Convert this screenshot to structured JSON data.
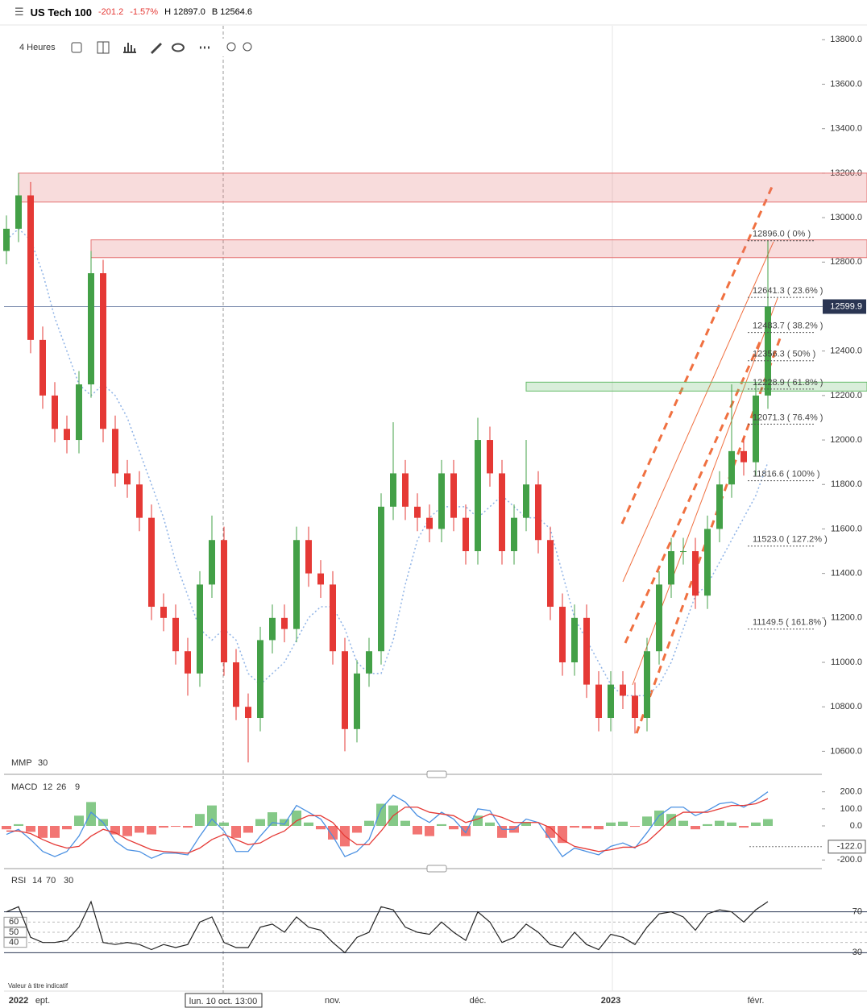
{
  "header": {
    "instrument": "US Tech 100",
    "change": -201.2,
    "change_pct": "-1.57%",
    "high": "H 12897.0",
    "low": "B 12564.6"
  },
  "toolbar": {
    "timeframe": "4 Heures"
  },
  "footer": {
    "note": "Valeur à titre indicatif",
    "crosshair_label": "lun. 10 oct. 13:00"
  },
  "chart_data": [
    {
      "type": "candlestick",
      "categories": [
        null,
        "2022",
        null,
        "ept.",
        null,
        null,
        null,
        null,
        null,
        null,
        null,
        null,
        null,
        null,
        null,
        null,
        null,
        null,
        null,
        null,
        null,
        null,
        null,
        null,
        null,
        null,
        null,
        "nov.",
        null,
        null,
        null,
        null,
        null,
        null,
        null,
        null,
        null,
        null,
        null,
        "déc.",
        null,
        null,
        null,
        null,
        null,
        null,
        null,
        null,
        null,
        null,
        "2023",
        null,
        null,
        null,
        null,
        null,
        null,
        null,
        null,
        null,
        null,
        null,
        "févr.",
        null
      ],
      "open": [
        12850,
        12950,
        13100,
        12450,
        12200,
        12050,
        12000,
        12250,
        12750,
        12050,
        11850,
        11800,
        11650,
        11250,
        11200,
        11050,
        10950,
        11350,
        11550,
        11000,
        10800,
        10750,
        11100,
        11200,
        11150,
        11550,
        11400,
        11350,
        11050,
        10700,
        10950,
        11050,
        11700,
        11850,
        11700,
        11650,
        11600,
        11850,
        11650,
        11500,
        12000,
        11850,
        11500,
        11650,
        11800,
        11550,
        11250,
        11000,
        11200,
        10900,
        10750,
        10900,
        10850,
        10750,
        11050,
        11350,
        11500,
        11500,
        11300,
        11600,
        11800,
        11950,
        11900,
        12200
      ],
      "high": [
        13010,
        13200,
        13160,
        12510,
        12260,
        12110,
        12310,
        12850,
        12810,
        12110,
        11910,
        11860,
        11710,
        11310,
        11260,
        11110,
        11410,
        11660,
        11610,
        11060,
        10860,
        11160,
        11260,
        11260,
        11610,
        11610,
        11460,
        11410,
        11110,
        11010,
        11110,
        11760,
        12080,
        11910,
        11760,
        11710,
        11910,
        11910,
        11710,
        12100,
        12060,
        11910,
        11710,
        12000,
        11860,
        11610,
        11310,
        11260,
        11260,
        10960,
        10960,
        10960,
        10910,
        11110,
        11410,
        11560,
        11560,
        11560,
        11660,
        11860,
        12250,
        12010,
        12260,
        12896
      ],
      "low": [
        12790,
        12890,
        12390,
        12140,
        11990,
        11940,
        11940,
        12190,
        11990,
        11790,
        11740,
        11590,
        11190,
        11140,
        10990,
        10850,
        10890,
        11290,
        10940,
        10740,
        10550,
        10690,
        11040,
        11090,
        11090,
        11340,
        11290,
        10990,
        10600,
        10640,
        10890,
        10990,
        11640,
        11640,
        11590,
        11540,
        11540,
        11590,
        11440,
        11440,
        11790,
        11440,
        11440,
        11590,
        11490,
        11190,
        10940,
        10940,
        10840,
        10690,
        10690,
        10790,
        10680,
        10690,
        10990,
        11290,
        11440,
        11240,
        11240,
        11540,
        11740,
        11840,
        11840,
        12140
      ],
      "close": [
        12950,
        13100,
        12450,
        12200,
        12050,
        12000,
        12250,
        12750,
        12050,
        11850,
        11800,
        11650,
        11250,
        11200,
        11050,
        10950,
        11350,
        11550,
        11000,
        10800,
        10750,
        11100,
        11200,
        11150,
        11550,
        11400,
        11350,
        11050,
        10700,
        10950,
        11050,
        11700,
        11850,
        11700,
        11650,
        11600,
        11850,
        11650,
        11500,
        12000,
        11850,
        11500,
        11650,
        11800,
        11550,
        11250,
        11000,
        11200,
        10900,
        10750,
        10900,
        10850,
        10750,
        11050,
        11350,
        11500,
        11500,
        11300,
        11600,
        11800,
        11950,
        11900,
        12200,
        12600
      ],
      "up_color": "#43a047",
      "down_color": "#e53935",
      "ma": {
        "name": "MMP",
        "period": 30,
        "color": "#8fb3e6",
        "values": [
          12900,
          12950,
          12900,
          12750,
          12550,
          12400,
          12250,
          12200,
          12250,
          12200,
          12100,
          11950,
          11800,
          11650,
          11450,
          11300,
          11150,
          11100,
          11150,
          11100,
          10950,
          10900,
          10950,
          11000,
          11100,
          11200,
          11250,
          11250,
          11150,
          11000,
          10950,
          10950,
          11100,
          11350,
          11550,
          11650,
          11700,
          11700,
          11700,
          11650,
          11700,
          11750,
          11700,
          11650,
          11650,
          11600,
          11400,
          11200,
          11100,
          11000,
          10900,
          10850,
          10850,
          10850,
          10900,
          11000,
          11150,
          11300,
          11350,
          11450,
          11550,
          11650,
          11750,
          11900
        ]
      },
      "zones": [
        {
          "from": 13070,
          "to": 13200,
          "start": 1,
          "color": "#e57373"
        },
        {
          "from": 12820,
          "to": 12900,
          "start": 7,
          "color": "#e57373"
        },
        {
          "from": 12220,
          "to": 12260,
          "start": 43,
          "color": "#66bb6a"
        }
      ],
      "fib": [
        {
          "value": 12896,
          "label": "12896.0 ( 0% )"
        },
        {
          "value": 12641.3,
          "label": "12641.3 ( 23.6% )"
        },
        {
          "value": 12483.7,
          "label": "12483.7 ( 38.2% )"
        },
        {
          "value": 12356.3,
          "label": "12356.3 ( 50% )"
        },
        {
          "value": 12228.9,
          "label": "12228.9 ( 61.8% )"
        },
        {
          "value": 12071.3,
          "label": "12071.3 ( 76.4% )"
        },
        {
          "value": 11816.6,
          "label": "11816.6 ( 100% )"
        },
        {
          "value": 11523,
          "label": "11523.0 ( 127.2% )"
        },
        {
          "value": 11149.5,
          "label": "11149.5 ( 161.8% )"
        }
      ],
      "last_price": 12599.9,
      "ylim": [
        10500,
        13870
      ],
      "yticks": [
        {
          "value": 10600,
          "label": "10600.0"
        },
        {
          "value": 10800,
          "label": "10800.0"
        },
        {
          "value": 11000,
          "label": "11000.0"
        },
        {
          "value": 11200,
          "label": "11200.0"
        },
        {
          "value": 11400,
          "label": "11400.0"
        },
        {
          "value": 11600,
          "label": "11600.0"
        },
        {
          "value": 11800,
          "label": "11800.0"
        },
        {
          "value": 12000,
          "label": "12000.0"
        },
        {
          "value": 12200,
          "label": "12200.0"
        },
        {
          "value": 12400,
          "label": "12400.0"
        },
        {
          "value": 12600,
          "label": "12600.0"
        },
        {
          "value": 12800,
          "label": "12800.0"
        },
        {
          "value": 13000,
          "label": "13000.0"
        },
        {
          "value": 13200,
          "label": "13200.0"
        },
        {
          "value": 13400,
          "label": "13400.0"
        },
        {
          "value": 13600,
          "label": "13600.0"
        },
        {
          "value": 13800,
          "label": "13800.0"
        }
      ]
    },
    {
      "type": "macd",
      "name": "MACD",
      "params": [
        12,
        26,
        9
      ],
      "series": [
        {
          "name": "MACD",
          "color": "#4a90e2",
          "values": [
            -50,
            -20,
            -80,
            -150,
            -180,
            -150,
            -60,
            80,
            20,
            -90,
            -140,
            -150,
            -190,
            -160,
            -160,
            -170,
            -60,
            40,
            -30,
            -150,
            -150,
            -60,
            20,
            10,
            120,
            80,
            40,
            -60,
            -180,
            -150,
            -80,
            100,
            180,
            140,
            60,
            20,
            80,
            40,
            -40,
            100,
            90,
            -20,
            -20,
            40,
            20,
            -80,
            -180,
            -130,
            -150,
            -170,
            -120,
            -100,
            -130,
            -40,
            60,
            110,
            110,
            60,
            90,
            130,
            140,
            110,
            150,
            200
          ]
        },
        {
          "name": "Signal",
          "color": "#e53935",
          "values": [
            -30,
            -30,
            -45,
            -80,
            -110,
            -130,
            -120,
            -60,
            -20,
            -40,
            -80,
            -110,
            -140,
            -150,
            -155,
            -160,
            -130,
            -80,
            -50,
            -80,
            -110,
            -100,
            -60,
            -30,
            30,
            60,
            60,
            20,
            -60,
            -110,
            -110,
            -30,
            60,
            110,
            110,
            80,
            70,
            60,
            20,
            40,
            70,
            50,
            20,
            20,
            20,
            -10,
            -80,
            -120,
            -135,
            -150,
            -140,
            -125,
            -125,
            -95,
            -30,
            40,
            80,
            80,
            80,
            100,
            120,
            120,
            130,
            160
          ]
        }
      ],
      "histogram": [
        -20,
        10,
        -35,
        -70,
        -70,
        -20,
        60,
        140,
        40,
        -50,
        -60,
        -40,
        -50,
        -10,
        -5,
        -10,
        70,
        120,
        20,
        -70,
        -40,
        40,
        80,
        40,
        90,
        20,
        -20,
        -80,
        -120,
        -40,
        30,
        130,
        120,
        30,
        -50,
        -60,
        10,
        -20,
        -60,
        60,
        20,
        -70,
        -40,
        20,
        0,
        -70,
        -100,
        -10,
        -15,
        -20,
        20,
        25,
        -5,
        55,
        90,
        70,
        30,
        -20,
        10,
        30,
        20,
        -10,
        20,
        40
      ],
      "last_value": {
        "value": -122,
        "label": "-122.0"
      },
      "ylim": [
        -260,
        260
      ],
      "yticks": [
        {
          "value": 200,
          "label": "200.0"
        },
        {
          "value": 100,
          "label": "100.0"
        },
        {
          "value": 0,
          "label": "0.0"
        },
        {
          "value": -200,
          "label": "-200.0"
        }
      ]
    },
    {
      "type": "rsi",
      "name": "RSI",
      "params": [
        14,
        70,
        30
      ],
      "color": "#222222",
      "values": [
        70,
        75,
        45,
        40,
        40,
        42,
        55,
        80,
        40,
        38,
        40,
        38,
        33,
        38,
        35,
        38,
        60,
        65,
        40,
        35,
        35,
        55,
        58,
        50,
        65,
        55,
        52,
        40,
        30,
        45,
        50,
        75,
        72,
        55,
        50,
        48,
        60,
        50,
        42,
        70,
        60,
        40,
        45,
        58,
        50,
        38,
        35,
        50,
        38,
        33,
        48,
        45,
        38,
        55,
        68,
        70,
        65,
        52,
        68,
        72,
        70,
        60,
        72,
        80
      ],
      "ylim": [
        20,
        95
      ],
      "yticks": [
        70,
        30
      ],
      "left_ticks": [
        60,
        50,
        40
      ]
    }
  ]
}
